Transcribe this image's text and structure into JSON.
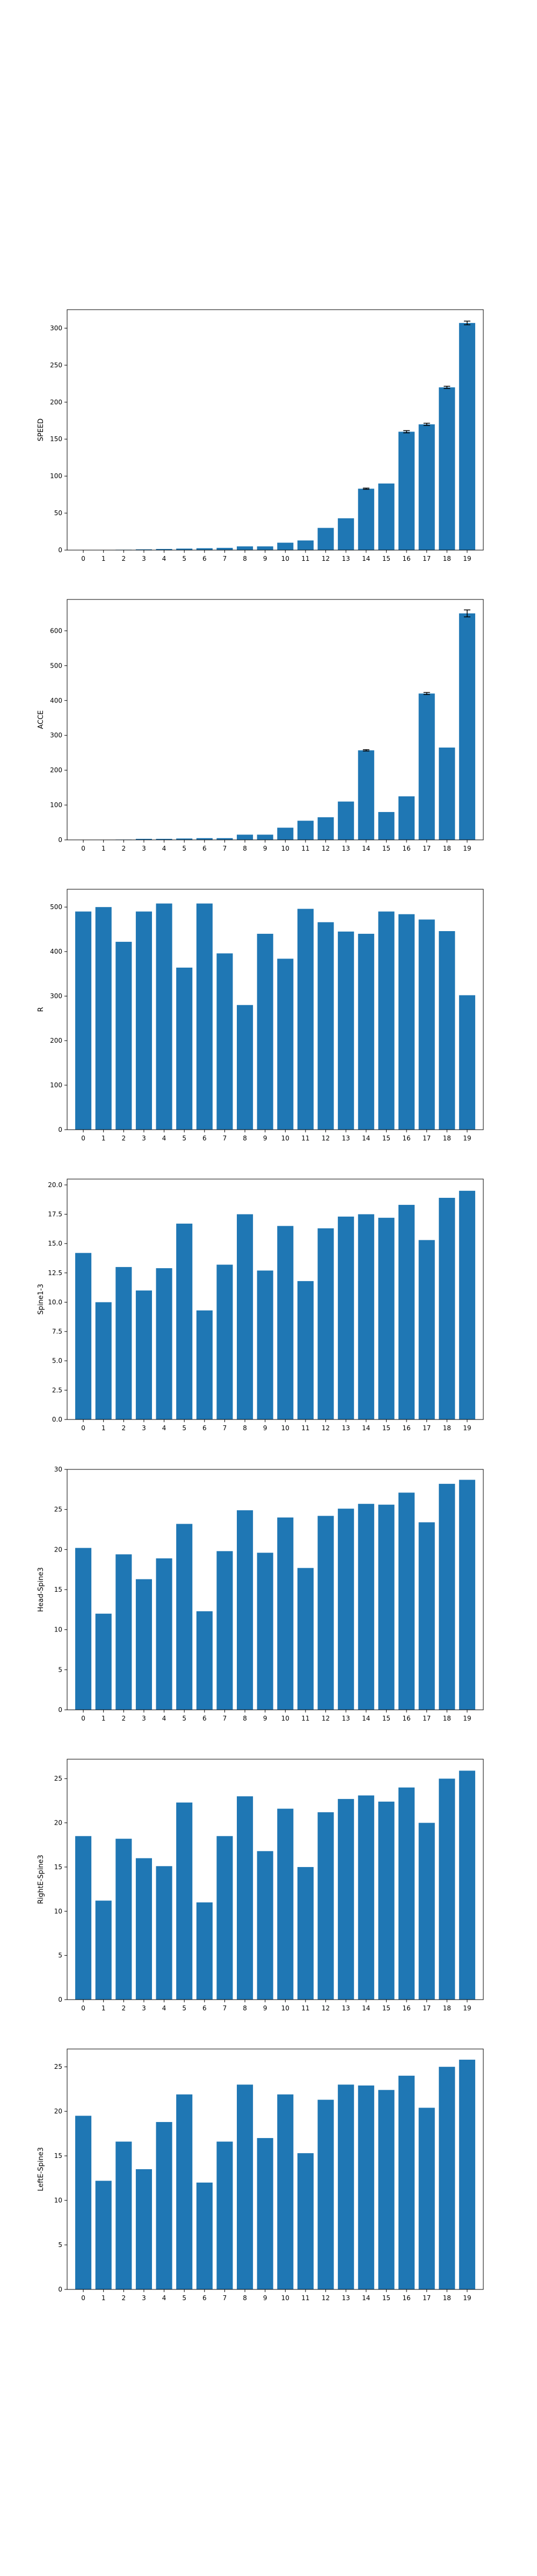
{
  "chart_data": [
    {
      "type": "bar",
      "ylabel": "SPEED",
      "categories": [
        "0",
        "1",
        "2",
        "3",
        "4",
        "5",
        "6",
        "7",
        "8",
        "9",
        "10",
        "11",
        "12",
        "13",
        "14",
        "15",
        "16",
        "17",
        "18",
        "19"
      ],
      "values": [
        0.2,
        0.2,
        0.5,
        1,
        1.5,
        2,
        2.5,
        3,
        5,
        5,
        10,
        13,
        30,
        43,
        83,
        90,
        160,
        170,
        220,
        307
      ],
      "errors": [
        0,
        0,
        0,
        0,
        0,
        0,
        0,
        0,
        0,
        0,
        0,
        0,
        0,
        0,
        0.8,
        0,
        1.5,
        1.5,
        1.5,
        2.5
      ],
      "ylim": [
        0,
        325
      ],
      "yticks": [
        0,
        50,
        100,
        150,
        200,
        250,
        300
      ],
      "bar_color": "#1f77b4",
      "grid": false
    },
    {
      "type": "bar",
      "ylabel": "ACCE",
      "categories": [
        "0",
        "1",
        "2",
        "3",
        "4",
        "5",
        "6",
        "7",
        "8",
        "9",
        "10",
        "11",
        "12",
        "13",
        "14",
        "15",
        "16",
        "17",
        "18",
        "19"
      ],
      "values": [
        0.5,
        0.5,
        1,
        3,
        3,
        4,
        5,
        5,
        15,
        15,
        35,
        55,
        65,
        110,
        257,
        80,
        125,
        420,
        265,
        650
      ],
      "errors": [
        0,
        0,
        0,
        0,
        0,
        0,
        0,
        0,
        0,
        0,
        0,
        0,
        0,
        0,
        2,
        0,
        0,
        3,
        0,
        10
      ],
      "ylim": [
        0,
        690
      ],
      "yticks": [
        0,
        100,
        200,
        300,
        400,
        500,
        600
      ],
      "bar_color": "#1f77b4",
      "grid": false
    },
    {
      "type": "bar",
      "ylabel": "R",
      "categories": [
        "0",
        "1",
        "2",
        "3",
        "4",
        "5",
        "6",
        "7",
        "8",
        "9",
        "10",
        "11",
        "12",
        "13",
        "14",
        "15",
        "16",
        "17",
        "18",
        "19"
      ],
      "values": [
        490,
        500,
        422,
        490,
        508,
        364,
        508,
        396,
        280,
        440,
        384,
        496,
        466,
        445,
        440,
        490,
        484,
        472,
        446,
        302
      ],
      "errors": [
        0,
        0,
        0,
        0,
        0,
        0,
        0,
        0,
        0,
        0,
        0,
        0,
        0,
        0,
        0,
        0,
        0,
        0,
        0,
        0
      ],
      "ylim": [
        0,
        540
      ],
      "yticks": [
        0,
        100,
        200,
        300,
        400,
        500
      ],
      "bar_color": "#1f77b4",
      "grid": false
    },
    {
      "type": "bar",
      "ylabel": "Spine1-3",
      "categories": [
        "0",
        "1",
        "2",
        "3",
        "4",
        "5",
        "6",
        "7",
        "8",
        "9",
        "10",
        "11",
        "12",
        "13",
        "14",
        "15",
        "16",
        "17",
        "18",
        "19"
      ],
      "values": [
        14.2,
        10.0,
        13.0,
        11.0,
        12.9,
        16.7,
        9.3,
        13.2,
        17.5,
        12.7,
        16.5,
        11.8,
        16.3,
        17.3,
        17.5,
        17.2,
        18.3,
        15.3,
        18.9,
        19.5
      ],
      "errors": [
        0,
        0,
        0,
        0,
        0,
        0,
        0,
        0,
        0,
        0,
        0,
        0,
        0,
        0,
        0,
        0,
        0,
        0,
        0,
        0
      ],
      "ylim": [
        0,
        20.5
      ],
      "yticks": [
        0.0,
        2.5,
        5.0,
        7.5,
        10.0,
        12.5,
        15.0,
        17.5,
        20.0
      ],
      "yticklabels": [
        "0.0",
        "2.5",
        "5.0",
        "7.5",
        "10.0",
        "12.5",
        "15.0",
        "17.5",
        "20.0"
      ],
      "bar_color": "#1f77b4",
      "grid": false
    },
    {
      "type": "bar",
      "ylabel": "Head-Spine3",
      "categories": [
        "0",
        "1",
        "2",
        "3",
        "4",
        "5",
        "6",
        "7",
        "8",
        "9",
        "10",
        "11",
        "12",
        "13",
        "14",
        "15",
        "16",
        "17",
        "18",
        "19"
      ],
      "values": [
        20.2,
        12.0,
        19.4,
        16.3,
        18.9,
        23.2,
        12.3,
        19.8,
        24.9,
        19.6,
        24.0,
        17.7,
        24.2,
        25.1,
        25.7,
        25.6,
        27.1,
        23.4,
        28.2,
        28.7
      ],
      "errors": [
        0,
        0,
        0,
        0,
        0,
        0,
        0,
        0,
        0,
        0,
        0,
        0,
        0,
        0,
        0,
        0,
        0,
        0,
        0,
        0
      ],
      "ylim": [
        0,
        30
      ],
      "yticks": [
        0,
        5,
        10,
        15,
        20,
        25,
        30
      ],
      "bar_color": "#1f77b4",
      "grid": false
    },
    {
      "type": "bar",
      "ylabel": "RightE-Spine3",
      "categories": [
        "0",
        "1",
        "2",
        "3",
        "4",
        "5",
        "6",
        "7",
        "8",
        "9",
        "10",
        "11",
        "12",
        "13",
        "14",
        "15",
        "16",
        "17",
        "18",
        "19"
      ],
      "values": [
        18.5,
        11.2,
        18.2,
        16.0,
        15.1,
        22.3,
        11.0,
        18.5,
        23.0,
        16.8,
        21.6,
        15.0,
        21.2,
        22.7,
        23.1,
        22.4,
        24.0,
        20.0,
        25.0,
        25.9
      ],
      "errors": [
        0,
        0,
        0,
        0,
        0,
        0,
        0,
        0,
        0,
        0,
        0,
        0,
        0,
        0,
        0,
        0,
        0,
        0,
        0,
        0
      ],
      "ylim": [
        0,
        27.2
      ],
      "yticks": [
        0,
        5,
        10,
        15,
        20,
        25
      ],
      "bar_color": "#1f77b4",
      "grid": false
    },
    {
      "type": "bar",
      "ylabel": "LeftE-Spine3",
      "categories": [
        "0",
        "1",
        "2",
        "3",
        "4",
        "5",
        "6",
        "7",
        "8",
        "9",
        "10",
        "11",
        "12",
        "13",
        "14",
        "15",
        "16",
        "17",
        "18",
        "19"
      ],
      "values": [
        19.5,
        12.2,
        16.6,
        13.5,
        18.8,
        21.9,
        12.0,
        16.6,
        23.0,
        17.0,
        21.9,
        15.3,
        21.3,
        23.0,
        22.9,
        22.4,
        24.0,
        20.4,
        25.0,
        25.8
      ],
      "errors": [
        0,
        0,
        0,
        0,
        0,
        0,
        0,
        0,
        0,
        0,
        0,
        0,
        0,
        0,
        0,
        0,
        0,
        0,
        0,
        0
      ],
      "ylim": [
        0,
        27
      ],
      "yticks": [
        0,
        5,
        10,
        15,
        20,
        25
      ],
      "bar_color": "#1f77b4",
      "grid": false
    }
  ]
}
